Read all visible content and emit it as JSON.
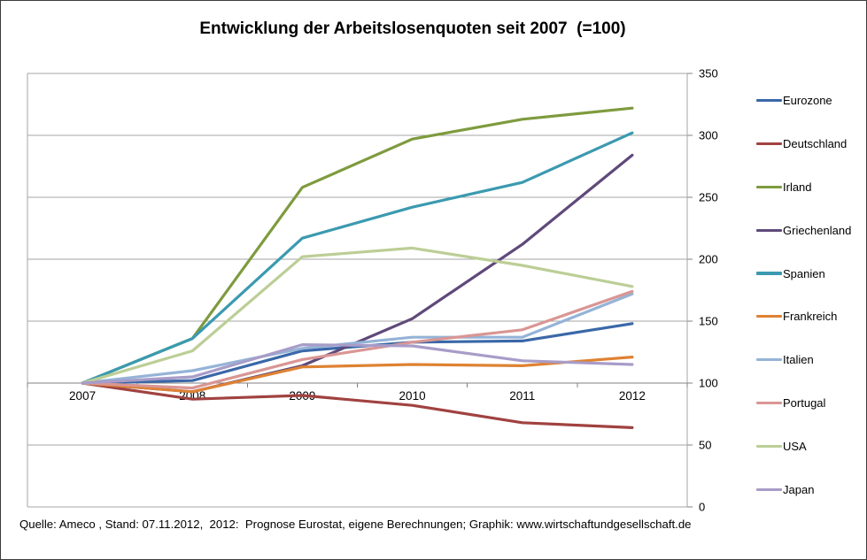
{
  "title": "Entwicklung der Arbeitslosenquoten seit 2007  (=100)",
  "footer": "Quelle: Ameco , Stand: 07.11.2012,  2012:  Prognose Eurostat, eigene Berechnungen; Graphik: www.wirtschaftundgesellschaft.de",
  "axis": {
    "grid_color": "#a6a6a6",
    "baseline_axis_color": "#808080",
    "tick_color": "#808080",
    "label_color": "#000000"
  },
  "chart_data": {
    "type": "line",
    "title": "Entwicklung der Arbeitslosenquoten seit 2007  (=100)",
    "x": [
      "2007",
      "2008",
      "2009",
      "2010",
      "2011",
      "2012"
    ],
    "xlabel": "",
    "ylabel": "",
    "ylim": [
      0,
      350
    ],
    "y_ticks": [
      0,
      50,
      100,
      150,
      200,
      250,
      300,
      350
    ],
    "baseline": 100,
    "grid": true,
    "legend_position": "right",
    "series": [
      {
        "name": "Eurozone",
        "color": "#3a68a8",
        "values": [
          100,
          102,
          126,
          133,
          134,
          148
        ]
      },
      {
        "name": "Deutschland",
        "color": "#a04240",
        "values": [
          100,
          87,
          90,
          82,
          68,
          64
        ]
      },
      {
        "name": "Irland",
        "color": "#7e9b3e",
        "values": [
          100,
          136,
          258,
          297,
          313,
          322
        ]
      },
      {
        "name": "Griechenland",
        "color": "#5f497a",
        "values": [
          100,
          93,
          114,
          152,
          212,
          284
        ]
      },
      {
        "name": "Spanien",
        "color": "#3b9ab0",
        "values": [
          100,
          136,
          217,
          242,
          262,
          302
        ]
      },
      {
        "name": "Frankreich",
        "color": "#de8233",
        "values": [
          100,
          93,
          113,
          115,
          114,
          121
        ]
      },
      {
        "name": "Italien",
        "color": "#95b3d7",
        "values": [
          100,
          110,
          128,
          137,
          137,
          172
        ]
      },
      {
        "name": "Portugal",
        "color": "#d99694",
        "values": [
          100,
          96,
          119,
          133,
          143,
          174
        ]
      },
      {
        "name": "USA",
        "color": "#bcce96",
        "values": [
          100,
          126,
          202,
          209,
          195,
          178
        ]
      },
      {
        "name": "Japan",
        "color": "#a89cc8",
        "values": [
          100,
          105,
          131,
          130,
          118,
          115
        ]
      }
    ]
  }
}
